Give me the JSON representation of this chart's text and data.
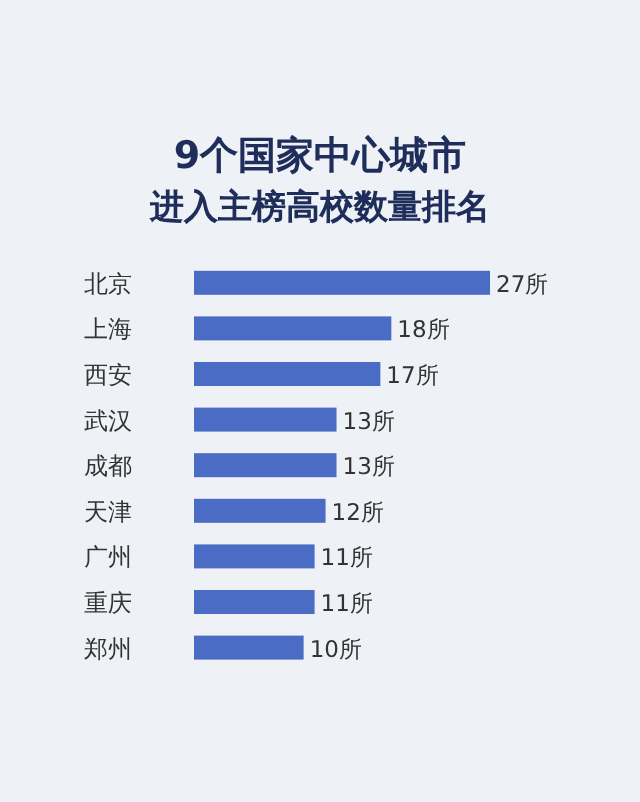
{
  "chart_data": {
    "type": "bar",
    "orientation": "horizontal",
    "title": "9个国家中心城市",
    "subtitle": "进入主榜高校数量排名",
    "categories": [
      "北京",
      "上海",
      "西安",
      "武汉",
      "成都",
      "天津",
      "广州",
      "重庆",
      "郑州"
    ],
    "values": [
      27,
      18,
      17,
      13,
      13,
      12,
      11,
      11,
      10
    ],
    "value_labels": [
      "27所",
      "18所",
      "17所",
      "13所",
      "13所",
      "12所",
      "11所",
      "11所",
      "10所"
    ],
    "color": "#4a6cc4"
  }
}
